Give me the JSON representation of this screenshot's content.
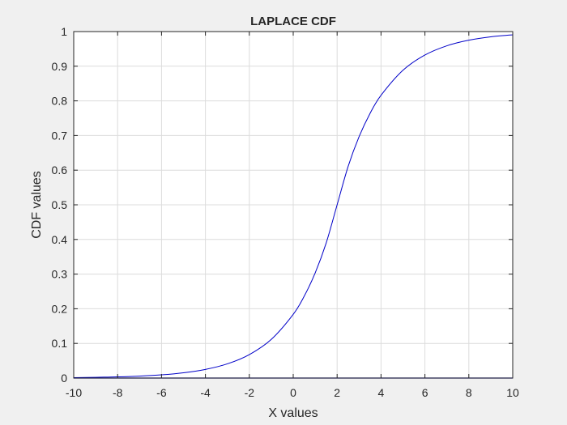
{
  "chart_data": {
    "type": "line",
    "title": "LAPLACE CDF",
    "xlabel": "X values",
    "ylabel": "CDF values",
    "xlim": [
      -10,
      10
    ],
    "ylim": [
      0,
      1
    ],
    "grid": true,
    "legend": "none",
    "xticks": [
      "-10",
      "-8",
      "-6",
      "-4",
      "-2",
      "0",
      "2",
      "4",
      "6",
      "8",
      "10"
    ],
    "yticks": [
      "0",
      "0.1",
      "0.2",
      "0.3",
      "0.4",
      "0.5",
      "0.6",
      "0.7",
      "0.8",
      "0.9",
      "1"
    ],
    "x": [
      -10,
      -9,
      -8,
      -7,
      -6,
      -5,
      -4,
      -3,
      -2,
      -1,
      0,
      0.5,
      1,
      1.5,
      2,
      2.5,
      3,
      3.5,
      4,
      5,
      6,
      7,
      8,
      9,
      10
    ],
    "y": [
      0.0012,
      0.0021,
      0.0034,
      0.0056,
      0.0092,
      0.0152,
      0.0249,
      0.041,
      0.0677,
      0.1116,
      0.1839,
      0.2362,
      0.3033,
      0.3894,
      0.5,
      0.6106,
      0.6967,
      0.7638,
      0.8161,
      0.8884,
      0.9323,
      0.959,
      0.9751,
      0.9848,
      0.9908
    ],
    "baseline": {
      "y": 0
    },
    "colors": {
      "line": "#0000c8",
      "axes": "#262626",
      "grid": "#dcdcdc",
      "plot_background": "#ffffff",
      "figure_background": "#f0f0f0"
    }
  }
}
